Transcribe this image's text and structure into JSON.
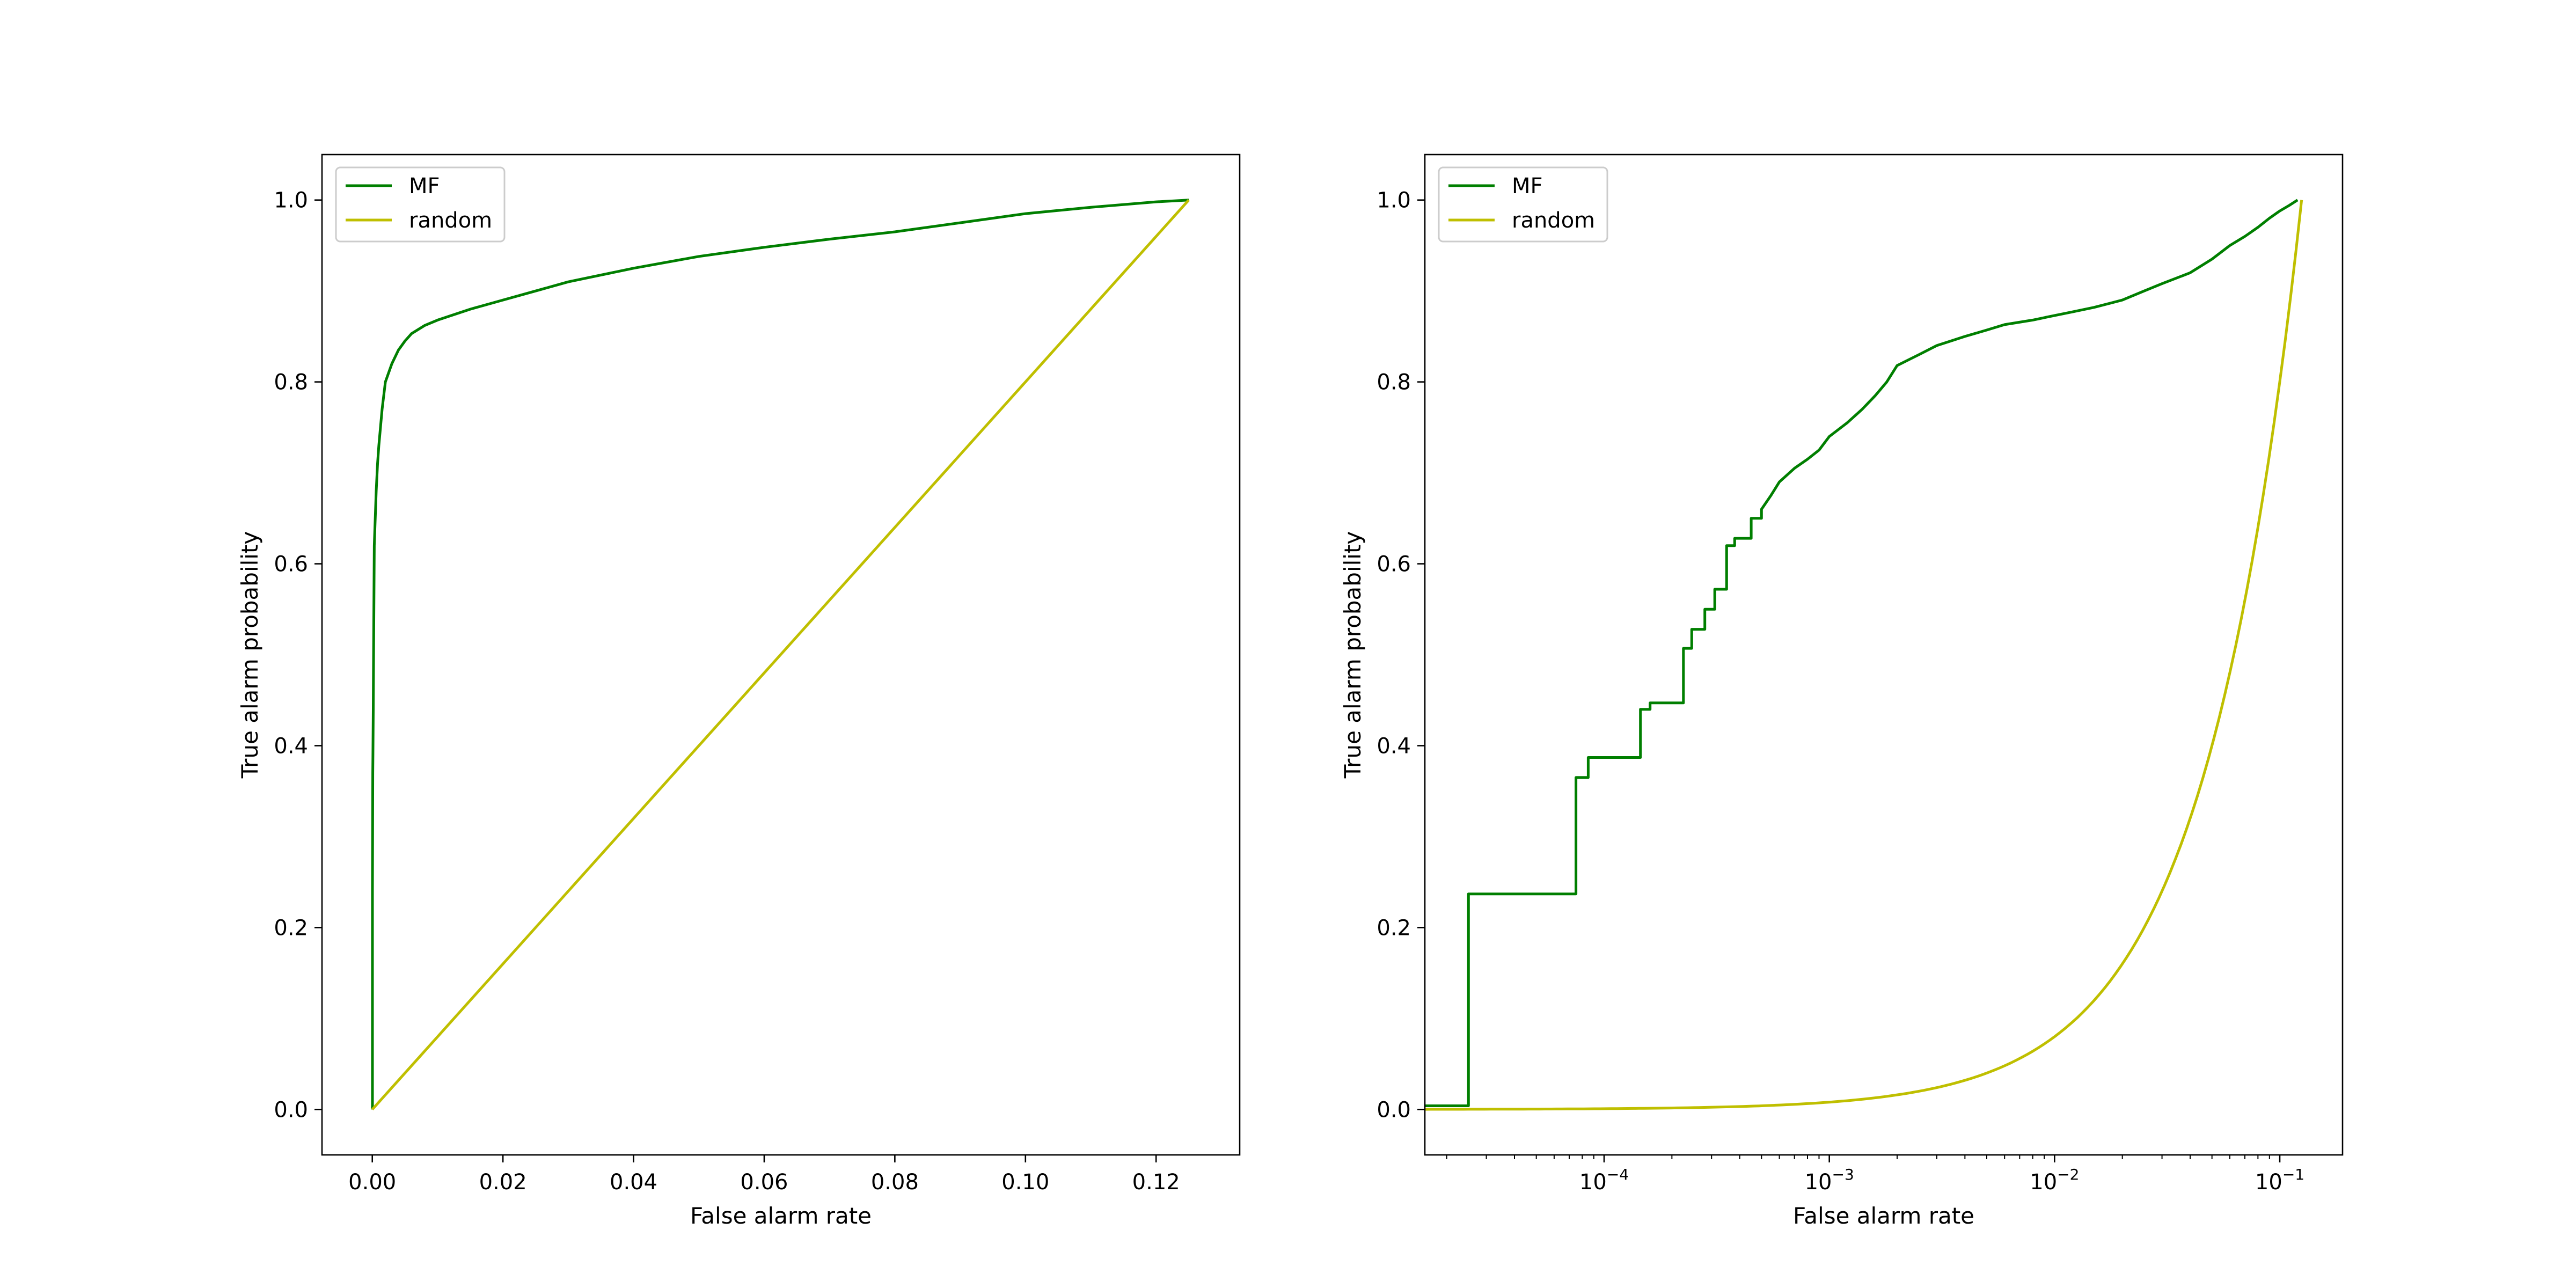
{
  "colors": {
    "mf": "#007f00",
    "random": "#bfbf00"
  },
  "chart_data": [
    {
      "type": "line",
      "title": "",
      "xlabel": "False alarm rate",
      "ylabel": "True alarm probability",
      "xscale": "linear",
      "xlim": [
        -0.0077,
        0.1328
      ],
      "ylim": [
        -0.05,
        1.05
      ],
      "xticks": [
        0.0,
        0.02,
        0.04,
        0.06,
        0.08,
        0.1,
        0.12
      ],
      "xtick_labels": [
        "0.00",
        "0.02",
        "0.04",
        "0.06",
        "0.08",
        "0.10",
        "0.12"
      ],
      "yticks": [
        0.0,
        0.2,
        0.4,
        0.6,
        0.8,
        1.0
      ],
      "ytick_labels": [
        "0.0",
        "0.2",
        "0.4",
        "0.6",
        "0.8",
        "1.0"
      ],
      "legend": {
        "placement": "upper-left",
        "entries": [
          "MF",
          "random"
        ]
      },
      "series": [
        {
          "name": "MF",
          "color_key": "mf",
          "x": [
            0,
            2e-05,
            2e-05,
            7e-05,
            0.0001,
            0.00015,
            0.0002,
            0.0003,
            0.0004,
            0.0006,
            0.0008,
            0.001,
            0.0015,
            0.002,
            0.003,
            0.004,
            0.005,
            0.006,
            0.008,
            0.01,
            0.015,
            0.02,
            0.025,
            0.03,
            0.04,
            0.05,
            0.06,
            0.07,
            0.08,
            0.09,
            0.1,
            0.11,
            0.12,
            0.125
          ],
          "y": [
            0,
            0.004,
            0.24,
            0.37,
            0.39,
            0.44,
            0.5,
            0.62,
            0.64,
            0.68,
            0.71,
            0.73,
            0.77,
            0.8,
            0.82,
            0.835,
            0.845,
            0.853,
            0.862,
            0.868,
            0.88,
            0.89,
            0.9,
            0.91,
            0.925,
            0.938,
            0.948,
            0.957,
            0.965,
            0.975,
            0.985,
            0.992,
            0.998,
            1.0
          ]
        },
        {
          "name": "random",
          "color_key": "random",
          "x": [
            0,
            0.125
          ],
          "y": [
            0,
            1.0
          ]
        }
      ]
    },
    {
      "type": "line",
      "title": "",
      "xlabel": "False alarm rate",
      "ylabel": "True alarm probability",
      "xscale": "log",
      "xlim": [
        1.6e-05,
        0.19
      ],
      "ylim": [
        -0.05,
        1.05
      ],
      "xticks": [
        0.0001,
        0.001,
        0.01,
        0.1
      ],
      "xtick_labels": [
        {
          "base": "10",
          "exp": "−4"
        },
        {
          "base": "10",
          "exp": "−3"
        },
        {
          "base": "10",
          "exp": "−2"
        },
        {
          "base": "10",
          "exp": "−1"
        }
      ],
      "yticks": [
        0.0,
        0.2,
        0.4,
        0.6,
        0.8,
        1.0
      ],
      "ytick_labels": [
        "0.0",
        "0.2",
        "0.4",
        "0.6",
        "0.8",
        "1.0"
      ],
      "legend": {
        "placement": "upper-left",
        "entries": [
          "MF",
          "random"
        ]
      },
      "series": [
        {
          "name": "MF",
          "color_key": "mf",
          "step": true,
          "x": [
            1.6e-05,
            2.5e-05,
            2.5e-05,
            7.5e-05,
            7.5e-05,
            8.5e-05,
            8.5e-05,
            0.000145,
            0.000145,
            0.00016,
            0.00016,
            0.000225,
            0.000225,
            0.000245,
            0.000245,
            0.00028,
            0.00028,
            0.00031,
            0.00031,
            0.00035,
            0.00035,
            0.00038,
            0.00038,
            0.00045,
            0.00045,
            0.0005,
            0.0005,
            0.00055,
            0.0006,
            0.0007,
            0.0008,
            0.0009,
            0.001,
            0.0012,
            0.0014,
            0.0016,
            0.0018,
            0.002,
            0.0025,
            0.003,
            0.004,
            0.005,
            0.006,
            0.008,
            0.01,
            0.012,
            0.015,
            0.02,
            0.025,
            0.03,
            0.04,
            0.05,
            0.06,
            0.07,
            0.08,
            0.09,
            0.1,
            0.11,
            0.12
          ],
          "y": [
            0.004,
            0.004,
            0.237,
            0.237,
            0.365,
            0.365,
            0.387,
            0.387,
            0.44,
            0.44,
            0.447,
            0.447,
            0.507,
            0.507,
            0.528,
            0.528,
            0.55,
            0.55,
            0.572,
            0.572,
            0.62,
            0.62,
            0.628,
            0.628,
            0.65,
            0.65,
            0.66,
            0.675,
            0.69,
            0.705,
            0.715,
            0.725,
            0.74,
            0.755,
            0.77,
            0.785,
            0.8,
            0.818,
            0.83,
            0.84,
            0.85,
            0.857,
            0.863,
            0.868,
            0.873,
            0.877,
            0.882,
            0.89,
            0.9,
            0.908,
            0.92,
            0.935,
            0.95,
            0.96,
            0.97,
            0.98,
            0.988,
            0.994,
            1.0
          ]
        },
        {
          "name": "random",
          "color_key": "random",
          "x_formula": "y = x / 0.125",
          "x": [
            1.6e-05,
            0.0001,
            0.001,
            0.005,
            0.01,
            0.02,
            0.03,
            0.05,
            0.08,
            0.1,
            0.125
          ],
          "y": [
            0.000128,
            0.0008,
            0.008,
            0.04,
            0.08,
            0.16,
            0.24,
            0.4,
            0.64,
            0.8,
            1.0
          ]
        }
      ]
    }
  ]
}
